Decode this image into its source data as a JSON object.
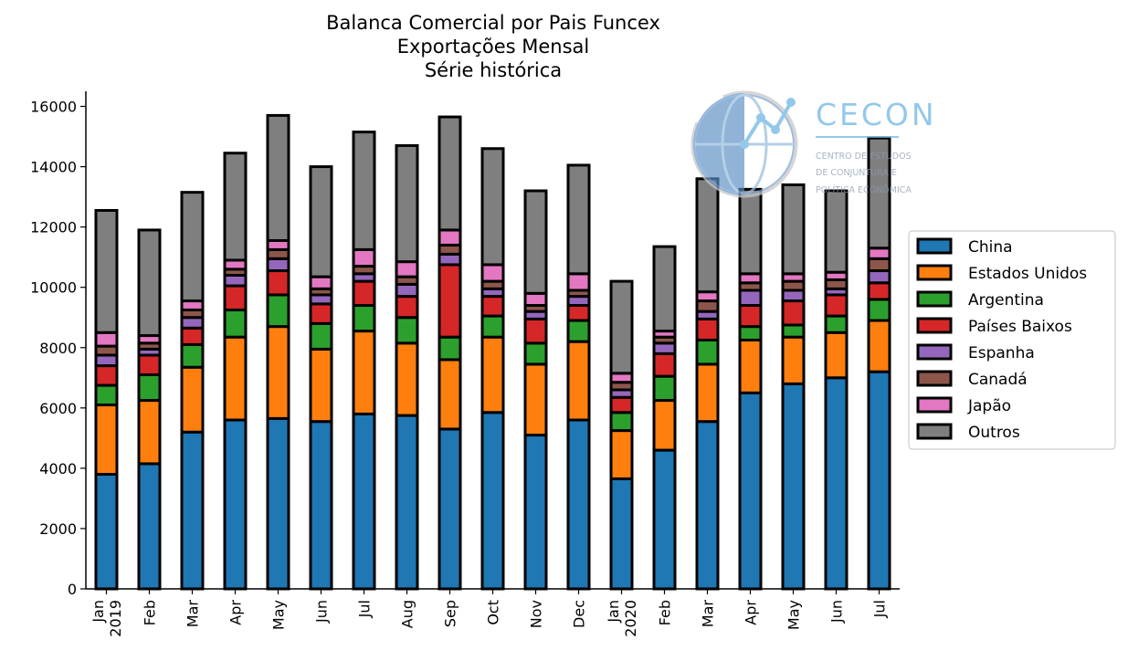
{
  "chart_data": {
    "type": "bar",
    "stacked": true,
    "title_lines": [
      "Balanca Comercial por Pais Funcex",
      "Exportações Mensal",
      "Série histórica"
    ],
    "xlabel": "",
    "ylabel": "",
    "ylim": [
      0,
      16500
    ],
    "yticks": [
      0,
      2000,
      4000,
      6000,
      8000,
      10000,
      12000,
      14000,
      16000
    ],
    "categories": [
      "Jan\n2019",
      "Feb",
      "Mar",
      "Apr",
      "May",
      "Jun",
      "Jul",
      "Aug",
      "Sep",
      "Oct",
      "Nov",
      "Dec",
      "Jan\n2020",
      "Feb",
      "Mar",
      "Apr",
      "May",
      "Jun",
      "Jul"
    ],
    "legend_position": "center-right",
    "series": [
      {
        "name": "China",
        "color": "#1f77b4",
        "values": [
          3800,
          4150,
          5200,
          5600,
          5650,
          5550,
          5800,
          5750,
          5300,
          5850,
          5100,
          5600,
          3650,
          4600,
          5550,
          6500,
          6800,
          7000,
          7200
        ]
      },
      {
        "name": "Estados Unidos",
        "color": "#ff7f0e",
        "values": [
          2300,
          2100,
          2150,
          2750,
          3050,
          2400,
          2750,
          2400,
          2300,
          2500,
          2350,
          2600,
          1600,
          1650,
          1900,
          1750,
          1550,
          1500,
          1700
        ]
      },
      {
        "name": "Argentina",
        "color": "#2ca02c",
        "values": [
          650,
          850,
          750,
          900,
          1050,
          850,
          850,
          850,
          750,
          700,
          700,
          700,
          600,
          800,
          800,
          450,
          400,
          550,
          700
        ]
      },
      {
        "name": "Países Baixos",
        "color": "#d62728",
        "values": [
          650,
          650,
          550,
          800,
          800,
          650,
          800,
          700,
          2400,
          650,
          800,
          500,
          500,
          750,
          700,
          700,
          800,
          700,
          550
        ]
      },
      {
        "name": "Espanha",
        "color": "#9467bd",
        "values": [
          350,
          200,
          350,
          350,
          400,
          300,
          250,
          400,
          350,
          250,
          250,
          300,
          250,
          350,
          250,
          500,
          350,
          200,
          400
        ]
      },
      {
        "name": "Canadá",
        "color": "#8c564b",
        "values": [
          300,
          200,
          250,
          200,
          300,
          200,
          250,
          250,
          300,
          250,
          200,
          200,
          250,
          200,
          350,
          250,
          300,
          300,
          400
        ]
      },
      {
        "name": "Japão",
        "color": "#e377c2",
        "values": [
          450,
          250,
          300,
          300,
          300,
          400,
          550,
          500,
          500,
          550,
          400,
          550,
          300,
          200,
          300,
          300,
          250,
          250,
          350
        ]
      },
      {
        "name": "Outros",
        "color": "#7f7f7f",
        "values": [
          4050,
          3500,
          3600,
          3550,
          4150,
          3650,
          3900,
          3850,
          3750,
          3850,
          3400,
          3600,
          3050,
          2800,
          3750,
          2800,
          2950,
          2700,
          3650
        ]
      }
    ]
  },
  "logo": {
    "name": "CECON",
    "subtitle_lines": [
      "CENTRO DE ESTUDOS",
      "DE CONJUNTURA E",
      "POLÍTICA ECONÔMICA"
    ]
  }
}
